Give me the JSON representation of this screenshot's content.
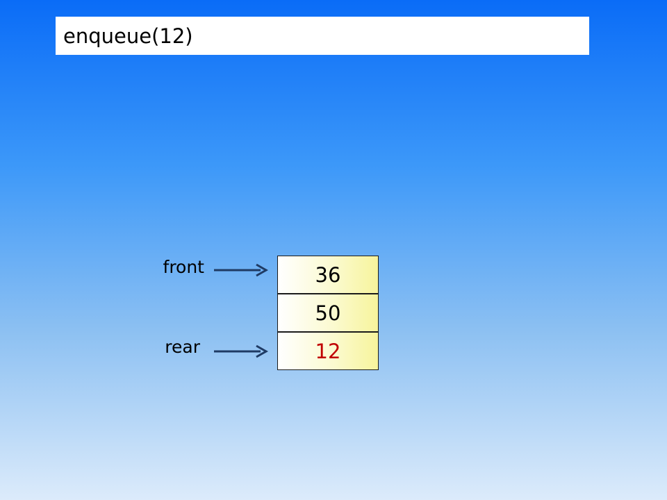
{
  "title": "enqueue(12)",
  "queue": {
    "cells": [
      {
        "value": "36",
        "color": "#000000"
      },
      {
        "value": "50",
        "color": "#000000"
      },
      {
        "value": "12",
        "color": "#c00000"
      }
    ]
  },
  "pointers": {
    "front": {
      "label": "front",
      "points_to_index": 0
    },
    "rear": {
      "label": "rear",
      "points_to_index": 2
    }
  },
  "colors": {
    "arrow": "#1f3b64",
    "highlight": "#c00000"
  }
}
